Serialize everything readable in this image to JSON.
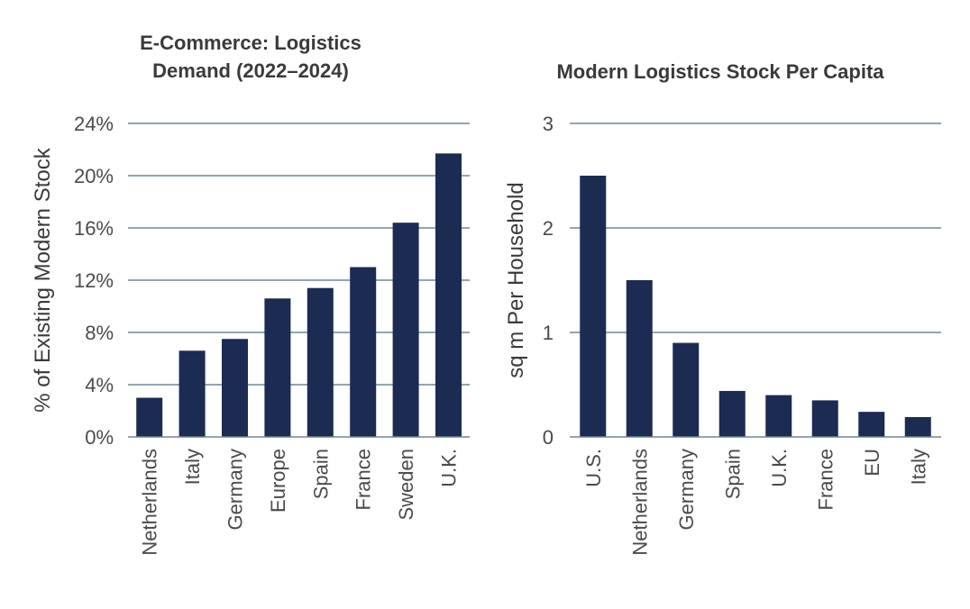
{
  "chart_data": [
    {
      "type": "bar",
      "title_lines": [
        "E-Commerce: Logistics",
        "Demand (2022–2024)"
      ],
      "ylabel": "% of Existing Modern Stock",
      "xlabel": "",
      "categories": [
        "Netherlands",
        "Italy",
        "Germany",
        "Europe",
        "Spain",
        "France",
        "Sweden",
        "U.K."
      ],
      "values": [
        3.0,
        6.6,
        7.5,
        10.6,
        11.4,
        13.0,
        16.4,
        21.7
      ],
      "ylim": [
        0,
        24
      ],
      "yticks": [
        0,
        4,
        8,
        12,
        16,
        20,
        24
      ],
      "ytick_labels": [
        "0%",
        "4%",
        "8%",
        "12%",
        "16%",
        "20%",
        "24%"
      ],
      "grid": true,
      "bar_color": "#1c2b52"
    },
    {
      "type": "bar",
      "title_lines": [
        "Modern Logistics Stock Per Capita"
      ],
      "ylabel": "sq m Per Household",
      "xlabel": "",
      "categories": [
        "U.S.",
        "Netherlands",
        "Germany",
        "Spain",
        "U.K.",
        "France",
        "EU",
        "Italy"
      ],
      "values": [
        2.5,
        1.5,
        0.9,
        0.44,
        0.4,
        0.35,
        0.24,
        0.19
      ],
      "ylim": [
        0,
        3
      ],
      "yticks": [
        0,
        1,
        2,
        3
      ],
      "ytick_labels": [
        "0",
        "1",
        "2",
        "3"
      ],
      "grid": true,
      "bar_color": "#1c2b52"
    }
  ]
}
